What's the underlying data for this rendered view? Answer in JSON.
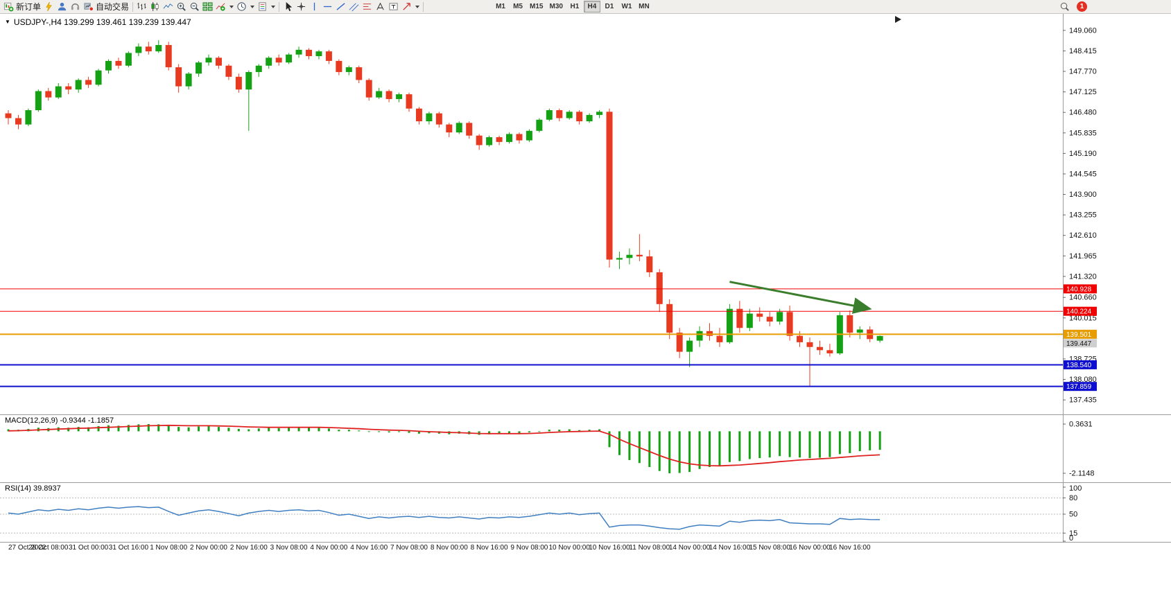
{
  "toolbar": {
    "new_order": {
      "label": "新订单"
    },
    "autotrading": {
      "label": "自动交易"
    },
    "timeframes": {
      "items": [
        "M1",
        "M5",
        "M15",
        "M30",
        "H1",
        "H4",
        "D1",
        "W1",
        "MN"
      ],
      "active": "H4"
    },
    "notifications": {
      "count": "1"
    }
  },
  "chart": {
    "collapse_glyph": "▼",
    "title": "USDJPY-,H4 139.299 139.461 139.239 139.447"
  },
  "chart_data": {
    "type": "candlestick",
    "symbol": "USDJPY-",
    "timeframe": "H4",
    "last_bar": {
      "open": 139.299,
      "high": 139.461,
      "low": 139.239,
      "close": 139.447
    },
    "ylim": [
      136.98,
      149.58
    ],
    "price_axis_labels": [
      "149.060",
      "148.415",
      "147.770",
      "147.125",
      "146.480",
      "145.835",
      "145.190",
      "144.545",
      "143.900",
      "143.255",
      "142.610",
      "141.965",
      "141.320",
      "140.660",
      "140.015",
      "138.725",
      "138.080",
      "137.435"
    ],
    "colors": {
      "bull": "#14a114",
      "bear": "#e83a20",
      "hline_red": "#f00000",
      "hline_orange": "#e79c00",
      "hline_blue": "#0f0fd0",
      "macd_bar": "#14a114",
      "macd_signal": "#e02020",
      "rsi_line": "#3f7fc1",
      "arrow": "#3a7d2c"
    },
    "x_labels": [
      {
        "i": 0,
        "t": "27 Oct 2022"
      },
      {
        "i": 4,
        "t": "28 Oct 08:00"
      },
      {
        "i": 8,
        "t": "31 Oct 00:00"
      },
      {
        "i": 12,
        "t": "31 Oct 16:00"
      },
      {
        "i": 16,
        "t": "1 Nov 08:00"
      },
      {
        "i": 20,
        "t": "2 Nov 00:00"
      },
      {
        "i": 24,
        "t": "2 Nov 16:00"
      },
      {
        "i": 28,
        "t": "3 Nov 08:00"
      },
      {
        "i": 32,
        "t": "4 Nov 00:00"
      },
      {
        "i": 36,
        "t": "4 Nov 16:00"
      },
      {
        "i": 40,
        "t": "7 Nov 08:00"
      },
      {
        "i": 44,
        "t": "8 Nov 00:00"
      },
      {
        "i": 48,
        "t": "8 Nov 16:00"
      },
      {
        "i": 52,
        "t": "9 Nov 08:00"
      },
      {
        "i": 56,
        "t": "10 Nov 00:00"
      },
      {
        "i": 60,
        "t": "10 Nov 16:00"
      },
      {
        "i": 64,
        "t": "11 Nov 08:00"
      },
      {
        "i": 68,
        "t": "14 Nov 00:00"
      },
      {
        "i": 72,
        "t": "14 Nov 16:00"
      },
      {
        "i": 76,
        "t": "15 Nov 08:00"
      },
      {
        "i": 80,
        "t": "16 Nov 00:00"
      },
      {
        "i": 84,
        "t": "16 Nov 16:00"
      }
    ],
    "candles": [
      [
        146.45,
        146.55,
        146.1,
        146.3
      ],
      [
        146.3,
        146.4,
        145.95,
        146.1
      ],
      [
        146.1,
        146.6,
        146.05,
        146.55
      ],
      [
        146.55,
        147.2,
        146.5,
        147.15
      ],
      [
        147.15,
        147.25,
        146.85,
        146.95
      ],
      [
        146.95,
        147.4,
        146.9,
        147.3
      ],
      [
        147.3,
        147.4,
        147.05,
        147.2
      ],
      [
        147.2,
        147.55,
        147.1,
        147.5
      ],
      [
        147.5,
        147.6,
        147.25,
        147.35
      ],
      [
        147.35,
        147.85,
        147.3,
        147.8
      ],
      [
        147.8,
        148.15,
        147.7,
        148.1
      ],
      [
        148.1,
        148.2,
        147.85,
        147.95
      ],
      [
        147.95,
        148.4,
        147.9,
        148.35
      ],
      [
        148.35,
        148.65,
        148.25,
        148.55
      ],
      [
        148.55,
        148.7,
        148.3,
        148.4
      ],
      [
        148.4,
        148.75,
        148.35,
        148.6
      ],
      [
        148.6,
        148.7,
        147.8,
        147.9
      ],
      [
        147.9,
        148.0,
        147.1,
        147.3
      ],
      [
        147.3,
        147.75,
        147.2,
        147.7
      ],
      [
        147.7,
        148.1,
        147.6,
        148.05
      ],
      [
        148.05,
        148.3,
        147.95,
        148.2
      ],
      [
        148.2,
        148.25,
        147.85,
        147.95
      ],
      [
        147.95,
        148.0,
        147.5,
        147.6
      ],
      [
        147.6,
        147.7,
        147.1,
        147.2
      ],
      [
        147.2,
        147.8,
        145.9,
        147.75
      ],
      [
        147.75,
        148.0,
        147.6,
        147.95
      ],
      [
        147.95,
        148.25,
        147.85,
        148.2
      ],
      [
        148.2,
        148.3,
        147.95,
        148.05
      ],
      [
        148.05,
        148.35,
        148.0,
        148.3
      ],
      [
        148.3,
        148.55,
        148.2,
        148.45
      ],
      [
        148.45,
        148.5,
        148.15,
        148.25
      ],
      [
        148.25,
        148.45,
        148.15,
        148.4
      ],
      [
        148.4,
        148.45,
        148.0,
        148.1
      ],
      [
        148.1,
        148.15,
        147.65,
        147.75
      ],
      [
        147.75,
        147.95,
        147.65,
        147.9
      ],
      [
        147.9,
        147.95,
        147.4,
        147.5
      ],
      [
        147.5,
        147.55,
        146.85,
        146.95
      ],
      [
        146.95,
        147.25,
        146.9,
        147.15
      ],
      [
        147.15,
        147.2,
        146.8,
        146.9
      ],
      [
        146.9,
        147.1,
        146.8,
        147.05
      ],
      [
        147.05,
        147.1,
        146.5,
        146.6
      ],
      [
        146.6,
        146.65,
        146.1,
        146.2
      ],
      [
        146.2,
        146.5,
        146.1,
        146.45
      ],
      [
        146.45,
        146.5,
        146.0,
        146.1
      ],
      [
        146.1,
        146.15,
        145.7,
        145.85
      ],
      [
        145.85,
        146.2,
        145.8,
        146.15
      ],
      [
        146.15,
        146.2,
        145.65,
        145.75
      ],
      [
        145.75,
        145.8,
        145.3,
        145.45
      ],
      [
        145.45,
        145.75,
        145.4,
        145.7
      ],
      [
        145.7,
        145.75,
        145.45,
        145.55
      ],
      [
        145.55,
        145.85,
        145.5,
        145.8
      ],
      [
        145.8,
        145.85,
        145.5,
        145.6
      ],
      [
        145.6,
        145.95,
        145.55,
        145.9
      ],
      [
        145.9,
        146.3,
        145.85,
        146.25
      ],
      [
        146.25,
        146.6,
        146.2,
        146.55
      ],
      [
        146.55,
        146.6,
        146.2,
        146.3
      ],
      [
        146.3,
        146.55,
        146.25,
        146.5
      ],
      [
        146.5,
        146.55,
        146.1,
        146.2
      ],
      [
        146.2,
        146.45,
        146.15,
        146.4
      ],
      [
        146.4,
        146.55,
        146.3,
        146.5
      ],
      [
        146.5,
        146.6,
        141.6,
        141.85
      ],
      [
        141.85,
        142.1,
        141.55,
        141.9
      ],
      [
        141.9,
        142.2,
        141.7,
        142.0
      ],
      [
        142.0,
        142.65,
        141.8,
        141.95
      ],
      [
        141.95,
        142.15,
        141.3,
        141.45
      ],
      [
        141.45,
        141.55,
        140.2,
        140.45
      ],
      [
        140.45,
        140.6,
        139.35,
        139.55
      ],
      [
        139.55,
        139.7,
        138.75,
        138.95
      ],
      [
        138.95,
        139.4,
        138.47,
        139.3
      ],
      [
        139.3,
        139.75,
        139.1,
        139.6
      ],
      [
        139.6,
        139.85,
        139.3,
        139.45
      ],
      [
        139.45,
        139.7,
        139.1,
        139.25
      ],
      [
        139.25,
        140.45,
        139.2,
        140.3
      ],
      [
        140.3,
        140.55,
        139.55,
        139.7
      ],
      [
        139.7,
        140.3,
        139.6,
        140.15
      ],
      [
        140.15,
        140.35,
        139.9,
        140.05
      ],
      [
        140.05,
        140.2,
        139.75,
        139.9
      ],
      [
        139.9,
        140.3,
        139.8,
        140.2
      ],
      [
        140.2,
        140.4,
        139.3,
        139.45
      ],
      [
        139.45,
        139.6,
        139.1,
        139.25
      ],
      [
        139.25,
        139.4,
        137.86,
        139.1
      ],
      [
        139.1,
        139.3,
        138.85,
        139.0
      ],
      [
        139.0,
        139.2,
        138.8,
        138.9
      ],
      [
        138.9,
        140.2,
        138.85,
        140.1
      ],
      [
        140.1,
        140.25,
        139.4,
        139.55
      ],
      [
        139.55,
        139.75,
        139.35,
        139.65
      ],
      [
        139.65,
        139.75,
        139.25,
        139.35
      ],
      [
        139.299,
        139.461,
        139.239,
        139.447
      ]
    ],
    "hlines": [
      {
        "price": 140.928,
        "label": "140.928",
        "color_key": "hline_red",
        "width": 1
      },
      {
        "price": 140.224,
        "label": "140.224",
        "color_key": "hline_red",
        "width": 1
      },
      {
        "price": 139.501,
        "label": "139.501",
        "color_key": "hline_orange",
        "width": 2
      },
      {
        "price": 138.54,
        "label": "138.540",
        "color_key": "hline_blue",
        "width": 2
      },
      {
        "price": 137.859,
        "label": "137.859",
        "color_key": "hline_blue",
        "width": 2
      }
    ],
    "current_price": {
      "value": 139.447,
      "label": "139.447"
    },
    "trend_arrow": {
      "from_index": 72,
      "from_price": 141.15,
      "to_index": 86,
      "to_price": 140.3
    },
    "macd": {
      "label": "MACD(12,26,9) -0.9344 -1.1857",
      "axis_labels": [
        "0.3631",
        "-2.1148"
      ],
      "values": [
        0.1,
        0.08,
        0.12,
        0.18,
        0.16,
        0.2,
        0.18,
        0.22,
        0.2,
        0.26,
        0.3,
        0.28,
        0.32,
        0.35,
        0.3631,
        0.35,
        0.3,
        0.22,
        0.2,
        0.24,
        0.26,
        0.22,
        0.18,
        0.12,
        0.1,
        0.14,
        0.18,
        0.16,
        0.18,
        0.2,
        0.18,
        0.18,
        0.14,
        0.08,
        0.08,
        0.04,
        0.0,
        -0.04,
        -0.06,
        -0.04,
        -0.08,
        -0.12,
        -0.1,
        -0.12,
        -0.15,
        -0.12,
        -0.15,
        -0.18,
        -0.15,
        -0.14,
        -0.1,
        -0.1,
        -0.06,
        0.0,
        0.08,
        0.08,
        0.1,
        0.06,
        0.08,
        0.1,
        -0.8,
        -1.2,
        -1.45,
        -1.6,
        -1.8,
        -2.0,
        -2.1148,
        -2.1,
        -2.05,
        -1.9,
        -1.8,
        -1.75,
        -1.55,
        -1.5,
        -1.4,
        -1.35,
        -1.32,
        -1.25,
        -1.3,
        -1.32,
        -1.35,
        -1.33,
        -1.3,
        -1.15,
        -1.1,
        -1.0,
        -0.96,
        -0.9344
      ],
      "signal": [
        0.02,
        0.03,
        0.05,
        0.07,
        0.09,
        0.11,
        0.13,
        0.15,
        0.16,
        0.18,
        0.2,
        0.22,
        0.24,
        0.26,
        0.28,
        0.29,
        0.3,
        0.29,
        0.28,
        0.28,
        0.28,
        0.27,
        0.26,
        0.24,
        0.22,
        0.21,
        0.2,
        0.2,
        0.2,
        0.2,
        0.2,
        0.2,
        0.19,
        0.17,
        0.15,
        0.13,
        0.1,
        0.08,
        0.06,
        0.05,
        0.03,
        0.0,
        -0.02,
        -0.04,
        -0.06,
        -0.07,
        -0.09,
        -0.11,
        -0.12,
        -0.12,
        -0.12,
        -0.12,
        -0.11,
        -0.09,
        -0.06,
        -0.04,
        -0.02,
        -0.01,
        0.0,
        0.01,
        -0.15,
        -0.4,
        -0.62,
        -0.82,
        -1.02,
        -1.22,
        -1.4,
        -1.54,
        -1.64,
        -1.7,
        -1.73,
        -1.74,
        -1.72,
        -1.7,
        -1.66,
        -1.62,
        -1.58,
        -1.53,
        -1.49,
        -1.45,
        -1.42,
        -1.39,
        -1.36,
        -1.32,
        -1.28,
        -1.24,
        -1.21,
        -1.1857
      ]
    },
    "rsi": {
      "label": "RSI(14) 39.8937",
      "axis_labels": [
        "100",
        "80",
        "50",
        "15",
        "0"
      ],
      "levels": [
        80,
        50,
        15
      ],
      "values": [
        52,
        50,
        54,
        58,
        56,
        59,
        57,
        60,
        58,
        61,
        63,
        61,
        63,
        64,
        62,
        63,
        55,
        48,
        52,
        56,
        58,
        55,
        51,
        47,
        52,
        55,
        57,
        55,
        57,
        58,
        56,
        57,
        53,
        48,
        50,
        46,
        42,
        45,
        43,
        45,
        46,
        44,
        46,
        44,
        43,
        45,
        43,
        41,
        44,
        43,
        45,
        44,
        46,
        49,
        52,
        50,
        52,
        49,
        51,
        52,
        26,
        29,
        30,
        30,
        28,
        25,
        23,
        22,
        27,
        30,
        29,
        28,
        37,
        35,
        38,
        39,
        38,
        40,
        34,
        33,
        32,
        32,
        31,
        42,
        40,
        41,
        40,
        39.8937
      ]
    }
  }
}
